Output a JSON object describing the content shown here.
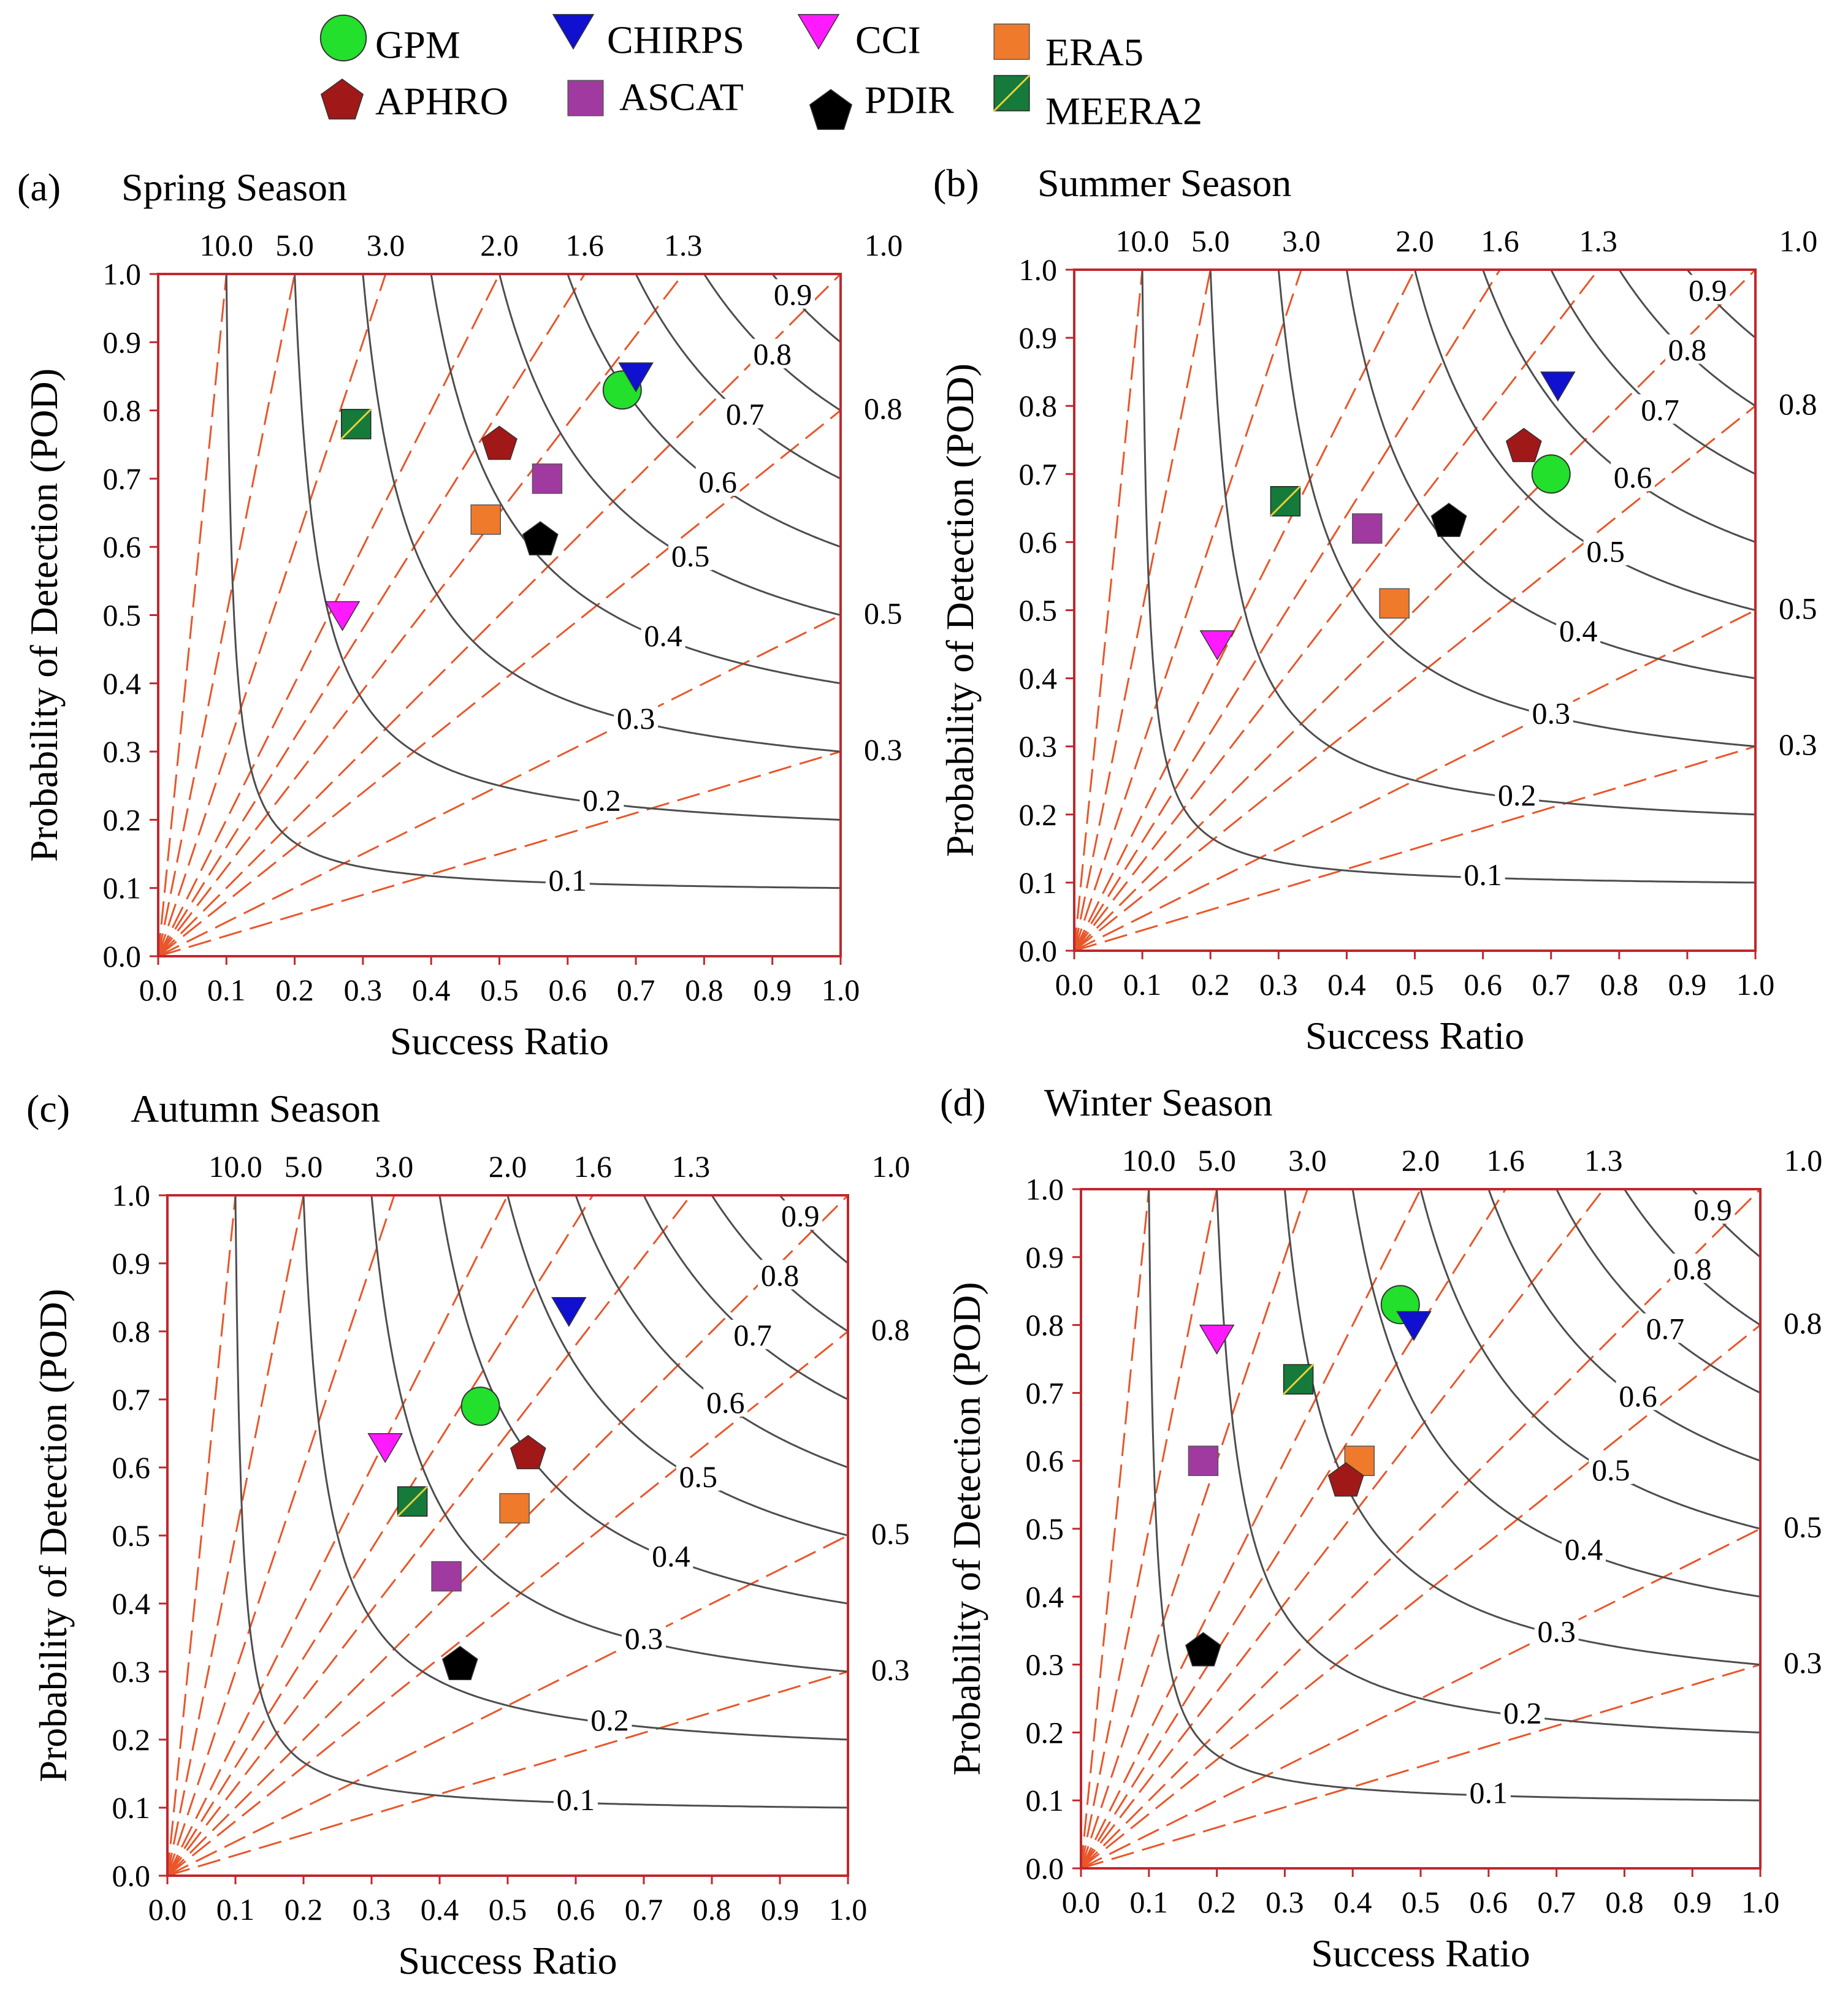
{
  "colors": {
    "axis": "#C0272D",
    "bias_line": "#E8562A",
    "csi_curve": "#4D4D4D",
    "text": "#000000"
  },
  "legend": [
    {
      "name": "GPM",
      "marker": "circle",
      "color": "#22E02B"
    },
    {
      "name": "CHIRPS",
      "marker": "triangle-down",
      "color": "#1010D0"
    },
    {
      "name": "CCI",
      "marker": "triangle-down",
      "color": "#FF1AFF"
    },
    {
      "name": "ERA5",
      "marker": "square",
      "color": "#F07A2B"
    },
    {
      "name": "APHRO",
      "marker": "pentagon",
      "color": "#A01818"
    },
    {
      "name": "ASCAT",
      "marker": "square",
      "color": "#A03AA0"
    },
    {
      "name": "PDIR",
      "marker": "pentagon",
      "color": "#000000"
    },
    {
      "name": "MEERA2",
      "marker": "square-split",
      "color": "#157A3A"
    }
  ],
  "chart_data": [
    {
      "type": "scatter",
      "panel": "(a)",
      "title": "Spring Season",
      "xlabel": "Success Ratio",
      "ylabel": "Probability of Detection (POD)",
      "xlim": [
        0,
        1
      ],
      "ylim": [
        0,
        1
      ],
      "x_ticks": [
        "0.0",
        "0.1",
        "0.2",
        "0.3",
        "0.4",
        "0.5",
        "0.6",
        "0.7",
        "0.8",
        "0.9",
        "1.0"
      ],
      "y_ticks": [
        "0.0",
        "0.1",
        "0.2",
        "0.3",
        "0.4",
        "0.5",
        "0.6",
        "0.7",
        "0.8",
        "0.9",
        "1.0"
      ],
      "bias_lines": [
        10.0,
        5.0,
        3.0,
        2.0,
        1.6,
        1.3,
        1.0,
        0.8,
        0.5,
        0.3
      ],
      "bias_top_labels": [
        "10.0",
        "5.0",
        "3.0",
        "2.0",
        "1.6",
        "1.3",
        "1.0"
      ],
      "bias_right_labels": [
        "0.8",
        "0.5",
        "0.3"
      ],
      "csi_contours": [
        0.1,
        0.2,
        0.3,
        0.4,
        0.5,
        0.6,
        0.7,
        0.8,
        0.9
      ],
      "csi_labels": [
        "0.1",
        "0.2",
        "0.3",
        "0.4",
        "0.5",
        "0.6",
        "0.7",
        "0.8",
        "0.9"
      ],
      "points": [
        {
          "name": "GPM",
          "x": 0.68,
          "y": 0.83
        },
        {
          "name": "CHIRPS",
          "x": 0.7,
          "y": 0.85
        },
        {
          "name": "CCI",
          "x": 0.27,
          "y": 0.5
        },
        {
          "name": "ERA5",
          "x": 0.48,
          "y": 0.64
        },
        {
          "name": "APHRO",
          "x": 0.5,
          "y": 0.75
        },
        {
          "name": "ASCAT",
          "x": 0.57,
          "y": 0.7
        },
        {
          "name": "PDIR",
          "x": 0.56,
          "y": 0.61
        },
        {
          "name": "MEERA2",
          "x": 0.29,
          "y": 0.78
        }
      ]
    },
    {
      "type": "scatter",
      "panel": "(b)",
      "title": "Summer Season",
      "xlabel": "Success Ratio",
      "ylabel": "Probability of Detection (POD)",
      "xlim": [
        0,
        1
      ],
      "ylim": [
        0,
        1
      ],
      "x_ticks": [
        "0.0",
        "0.1",
        "0.2",
        "0.3",
        "0.4",
        "0.5",
        "0.6",
        "0.7",
        "0.8",
        "0.9",
        "1.0"
      ],
      "y_ticks": [
        "0.0",
        "0.1",
        "0.2",
        "0.3",
        "0.4",
        "0.5",
        "0.6",
        "0.7",
        "0.8",
        "0.9",
        "1.0"
      ],
      "bias_lines": [
        10.0,
        5.0,
        3.0,
        2.0,
        1.6,
        1.3,
        1.0,
        0.8,
        0.5,
        0.3
      ],
      "bias_top_labels": [
        "10.0",
        "5.0",
        "3.0",
        "2.0",
        "1.6",
        "1.3",
        "1.0"
      ],
      "bias_right_labels": [
        "0.8",
        "0.5",
        "0.3"
      ],
      "csi_contours": [
        0.1,
        0.2,
        0.3,
        0.4,
        0.5,
        0.6,
        0.7,
        0.8,
        0.9
      ],
      "csi_labels": [
        "0.1",
        "0.2",
        "0.3",
        "0.4",
        "0.5",
        "0.6",
        "0.7",
        "0.8",
        "0.9"
      ],
      "points": [
        {
          "name": "GPM",
          "x": 0.7,
          "y": 0.7
        },
        {
          "name": "CHIRPS",
          "x": 0.71,
          "y": 0.83
        },
        {
          "name": "CCI",
          "x": 0.21,
          "y": 0.45
        },
        {
          "name": "ERA5",
          "x": 0.47,
          "y": 0.51
        },
        {
          "name": "APHRO",
          "x": 0.66,
          "y": 0.74
        },
        {
          "name": "ASCAT",
          "x": 0.43,
          "y": 0.62
        },
        {
          "name": "PDIR",
          "x": 0.55,
          "y": 0.63
        },
        {
          "name": "MEERA2",
          "x": 0.31,
          "y": 0.66
        }
      ]
    },
    {
      "type": "scatter",
      "panel": "(c)",
      "title": "Autumn Season",
      "xlabel": "Success Ratio",
      "ylabel": "Probability of Detection (POD)",
      "xlim": [
        0,
        1
      ],
      "ylim": [
        0,
        1
      ],
      "x_ticks": [
        "0.0",
        "0.1",
        "0.2",
        "0.3",
        "0.4",
        "0.5",
        "0.6",
        "0.7",
        "0.8",
        "0.9",
        "1.0"
      ],
      "y_ticks": [
        "0.0",
        "0.1",
        "0.2",
        "0.3",
        "0.4",
        "0.5",
        "0.6",
        "0.7",
        "0.8",
        "0.9",
        "1.0"
      ],
      "bias_lines": [
        10.0,
        5.0,
        3.0,
        2.0,
        1.6,
        1.3,
        1.0,
        0.8,
        0.5,
        0.3
      ],
      "bias_top_labels": [
        "10.0",
        "5.0",
        "3.0",
        "2.0",
        "1.6",
        "1.3",
        "1.0"
      ],
      "bias_right_labels": [
        "0.8",
        "0.5",
        "0.3"
      ],
      "csi_contours": [
        0.1,
        0.2,
        0.3,
        0.4,
        0.5,
        0.6,
        0.7,
        0.8,
        0.9
      ],
      "csi_labels": [
        "0.1",
        "0.2",
        "0.3",
        "0.4",
        "0.5",
        "0.6",
        "0.7",
        "0.8",
        "0.9"
      ],
      "points": [
        {
          "name": "GPM",
          "x": 0.46,
          "y": 0.69
        },
        {
          "name": "CHIRPS",
          "x": 0.59,
          "y": 0.83
        },
        {
          "name": "CCI",
          "x": 0.32,
          "y": 0.63
        },
        {
          "name": "ERA5",
          "x": 0.51,
          "y": 0.54
        },
        {
          "name": "APHRO",
          "x": 0.53,
          "y": 0.62
        },
        {
          "name": "ASCAT",
          "x": 0.41,
          "y": 0.44
        },
        {
          "name": "PDIR",
          "x": 0.43,
          "y": 0.31
        },
        {
          "name": "MEERA2",
          "x": 0.36,
          "y": 0.55
        }
      ]
    },
    {
      "type": "scatter",
      "panel": "(d)",
      "title": "Winter Season",
      "xlabel": "Success Ratio",
      "ylabel": "Probability of Detection (POD)",
      "xlim": [
        0,
        1
      ],
      "ylim": [
        0,
        1
      ],
      "x_ticks": [
        "0.0",
        "0.1",
        "0.2",
        "0.3",
        "0.4",
        "0.5",
        "0.6",
        "0.7",
        "0.8",
        "0.9",
        "1.0"
      ],
      "y_ticks": [
        "0.0",
        "0.1",
        "0.2",
        "0.3",
        "0.4",
        "0.5",
        "0.6",
        "0.7",
        "0.8",
        "0.9",
        "1.0"
      ],
      "bias_lines": [
        10.0,
        5.0,
        3.0,
        2.0,
        1.6,
        1.3,
        1.0,
        0.8,
        0.5,
        0.3
      ],
      "bias_top_labels": [
        "10.0",
        "5.0",
        "3.0",
        "2.0",
        "1.6",
        "1.3",
        "1.0"
      ],
      "bias_right_labels": [
        "0.8",
        "0.5",
        "0.3"
      ],
      "csi_contours": [
        0.1,
        0.2,
        0.3,
        0.4,
        0.5,
        0.6,
        0.7,
        0.8,
        0.9
      ],
      "csi_labels": [
        "0.1",
        "0.2",
        "0.3",
        "0.4",
        "0.5",
        "0.6",
        "0.7",
        "0.8",
        "0.9"
      ],
      "points": [
        {
          "name": "GPM",
          "x": 0.47,
          "y": 0.83
        },
        {
          "name": "CHIRPS",
          "x": 0.49,
          "y": 0.8
        },
        {
          "name": "CCI",
          "x": 0.2,
          "y": 0.78
        },
        {
          "name": "ERA5",
          "x": 0.41,
          "y": 0.6
        },
        {
          "name": "APHRO",
          "x": 0.39,
          "y": 0.57
        },
        {
          "name": "ASCAT",
          "x": 0.18,
          "y": 0.6
        },
        {
          "name": "PDIR",
          "x": 0.18,
          "y": 0.32
        },
        {
          "name": "MEERA2",
          "x": 0.32,
          "y": 0.72
        }
      ]
    }
  ]
}
